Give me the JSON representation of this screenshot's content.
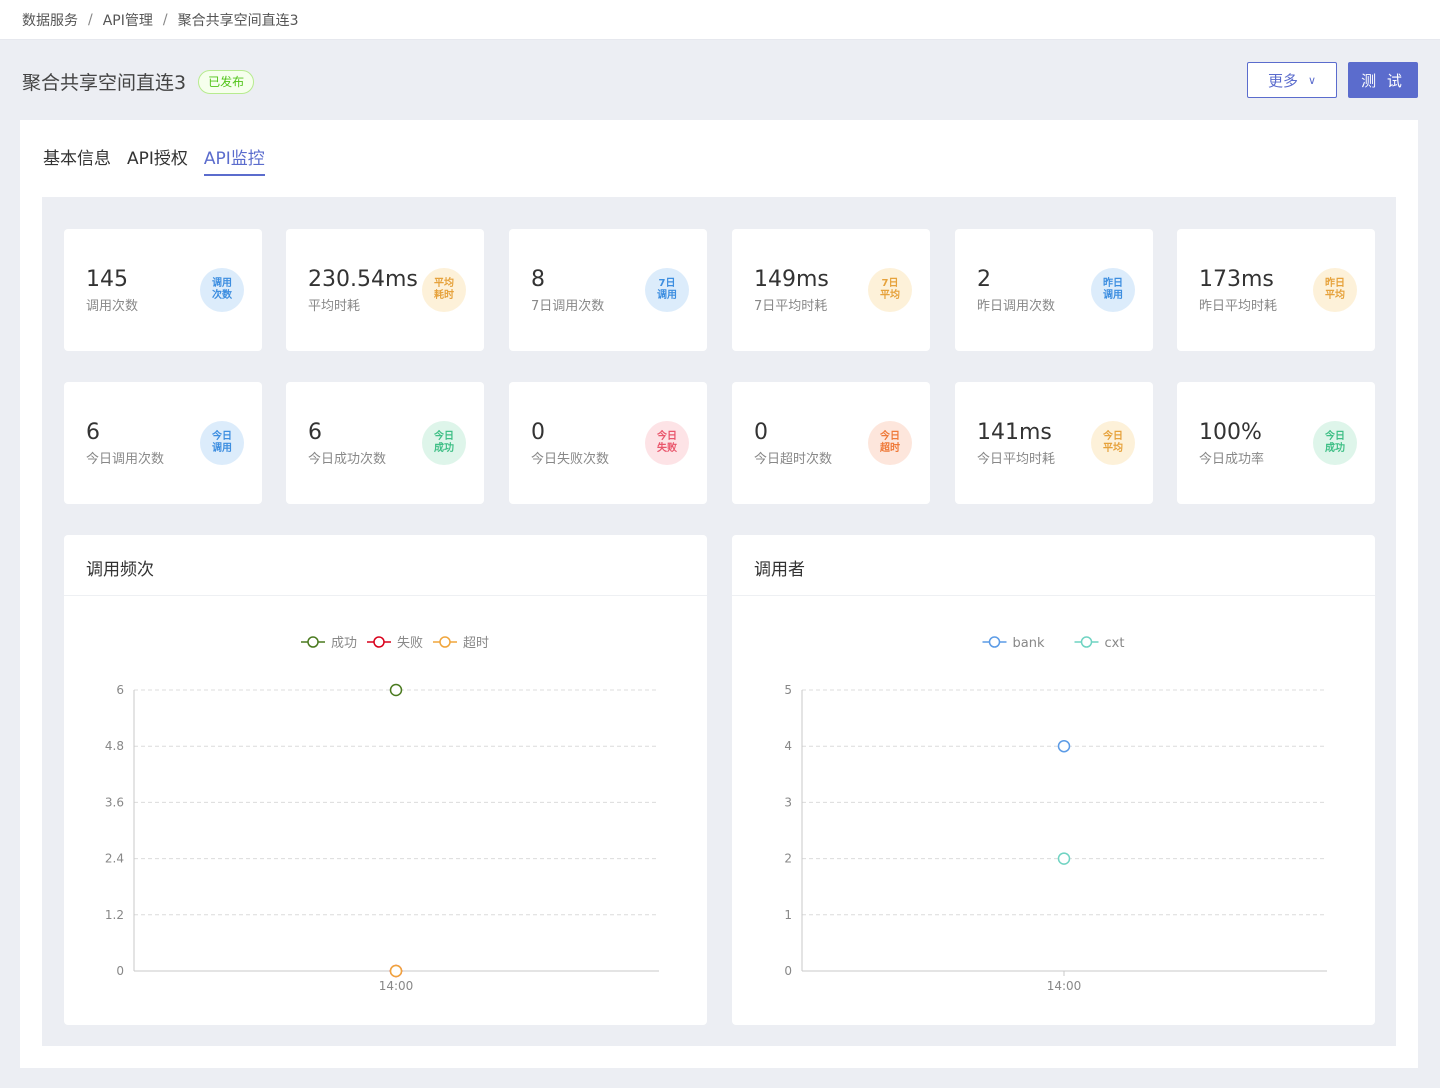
{
  "breadcrumb": [
    "数据服务",
    "API管理",
    "聚合共享空间直连3"
  ],
  "breadcrumb_separator": "/",
  "page": {
    "title": "聚合共享空间直连3",
    "status": "已发布"
  },
  "actions": {
    "more": "更多",
    "test": "测 试"
  },
  "tabs": [
    "基本信息",
    "API授权",
    "API监控"
  ],
  "active_tab": "API监控",
  "stats_row1": [
    {
      "value": "145",
      "label": "调用次数",
      "icon_text": "调用次数",
      "color": "blue"
    },
    {
      "value": "230.54ms",
      "label": "平均时耗",
      "icon_text": "平均耗时",
      "color": "yellow"
    },
    {
      "value": "8",
      "label": "7日调用次数",
      "icon_text": "7日调用",
      "color": "blue"
    },
    {
      "value": "149ms",
      "label": "7日平均时耗",
      "icon_text": "7日平均",
      "color": "yellow"
    },
    {
      "value": "2",
      "label": "昨日调用次数",
      "icon_text": "昨日调用",
      "color": "blue"
    },
    {
      "value": "173ms",
      "label": "昨日平均时耗",
      "icon_text": "昨日平均",
      "color": "yellow"
    }
  ],
  "stats_row2": [
    {
      "value": "6",
      "label": "今日调用次数",
      "icon_text": "今日调用",
      "color": "blue"
    },
    {
      "value": "6",
      "label": "今日成功次数",
      "icon_text": "今日成功",
      "color": "green"
    },
    {
      "value": "0",
      "label": "今日失败次数",
      "icon_text": "今日失败",
      "color": "red"
    },
    {
      "value": "0",
      "label": "今日超时次数",
      "icon_text": "今日超时",
      "color": "orange"
    },
    {
      "value": "141ms",
      "label": "今日平均时耗",
      "icon_text": "今日平均",
      "color": "yellow"
    },
    {
      "value": "100%",
      "label": "今日成功率",
      "icon_text": "今日成功",
      "color": "green"
    }
  ],
  "chart_titles": {
    "frequency": "调用频次",
    "callers": "调用者"
  },
  "colors": {
    "accent": "#5b6ccd",
    "success": "#4a7a1f",
    "fail": "#d9001b",
    "timeout": "#f0a53c",
    "bank": "#5b9be6",
    "cxt": "#6fd3c2"
  },
  "chart_data": [
    {
      "type": "line",
      "x": [
        "14:00"
      ],
      "series": [
        {
          "name": "成功",
          "values": [
            6
          ],
          "color": "#4a7a1f"
        },
        {
          "name": "失败",
          "values": [
            0
          ],
          "color": "#d9001b"
        },
        {
          "name": "超时",
          "values": [
            0
          ],
          "color": "#f0a53c"
        }
      ],
      "yticks": [
        "0",
        "1.2",
        "2.4",
        "3.6",
        "4.8",
        "6"
      ],
      "ylim": [
        0,
        6
      ],
      "grid": true,
      "legend": "top-center"
    },
    {
      "type": "line",
      "x": [
        "14:00"
      ],
      "series": [
        {
          "name": "bank",
          "values": [
            4
          ],
          "color": "#5b9be6"
        },
        {
          "name": "cxt",
          "values": [
            2
          ],
          "color": "#6fd3c2"
        }
      ],
      "yticks": [
        "0",
        "1",
        "2",
        "3",
        "4",
        "5"
      ],
      "ylim": [
        0,
        5
      ],
      "grid": true,
      "legend": "top-center"
    }
  ]
}
